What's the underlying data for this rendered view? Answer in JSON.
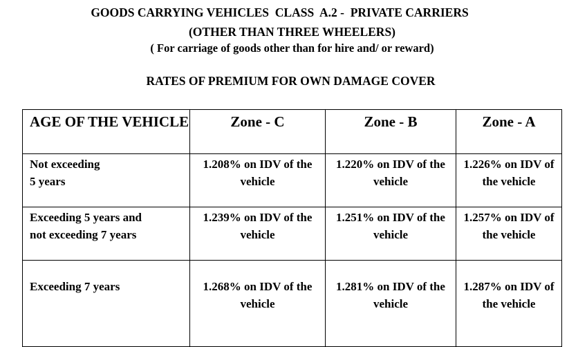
{
  "document": {
    "title_line1": "GOODS CARRYING VEHICLES  CLASS  A.2 -  PRIVATE CARRIERS",
    "title_line2": "(OTHER THAN THREE WHEELERS)",
    "title_line3": "( For carriage of goods other than for hire and/ or reward)",
    "section_heading": "RATES OF PREMIUM FOR OWN DAMAGE COVER"
  },
  "table": {
    "headers": [
      "AGE OF THE VEHICLE",
      "Zone - C",
      "Zone - B",
      "Zone - A"
    ],
    "rows": [
      {
        "age": "Not exceeding\n 5 years",
        "zone_c": "1.208%  on IDV of the vehicle",
        "zone_b": "1.220%  on IDV of the vehicle",
        "zone_a": "1.226%  on IDV of the vehicle"
      },
      {
        "age": "Exceeding 5 years and\nnot exceeding 7 years",
        "zone_c": "1.239%  on IDV of the vehicle",
        "zone_b": "1.251%  on IDV of the vehicle",
        "zone_a": "1.257%  on IDV of the vehicle"
      },
      {
        "age": "Exceeding 7 years",
        "zone_c": "1.268%  on IDV of the vehicle",
        "zone_b": "1.281%  on IDV of the vehicle",
        "zone_a": "1.287%  on IDV of the vehicle"
      }
    ]
  }
}
